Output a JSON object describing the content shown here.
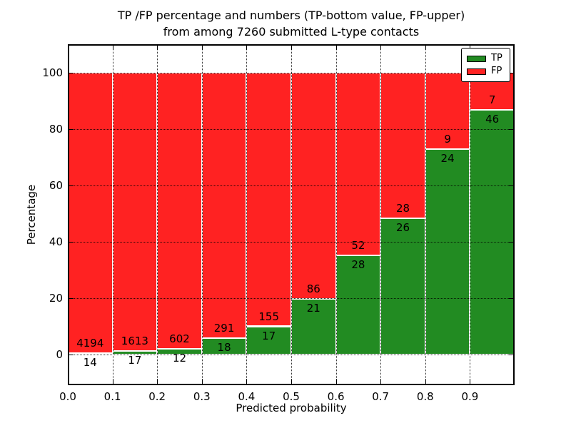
{
  "chart_data": {
    "type": "bar",
    "stacked": true,
    "title_line1": "TP /FP percentage and numbers (TP-bottom value, FP-upper)",
    "title_line2": "from among 7260 submitted L-type contacts",
    "xlabel": "Predicted probability",
    "ylabel": "Percentage",
    "total_contacts": 7260,
    "xlim": [
      0.0,
      1.0
    ],
    "ylim": [
      -11,
      110
    ],
    "x_tick_labels": [
      "0.0",
      "0.1",
      "0.2",
      "0.3",
      "0.4",
      "0.5",
      "0.6",
      "0.7",
      "0.8",
      "0.9"
    ],
    "y_tick_values": [
      0,
      20,
      40,
      60,
      80,
      100
    ],
    "grid": "dotted",
    "bins": [
      {
        "x_start": 0.0,
        "x_end": 0.1,
        "tp": 14,
        "fp": 4194,
        "tp_percent": 0.33
      },
      {
        "x_start": 0.1,
        "x_end": 0.2,
        "tp": 17,
        "fp": 1613,
        "tp_percent": 1.04
      },
      {
        "x_start": 0.2,
        "x_end": 0.3,
        "tp": 12,
        "fp": 602,
        "tp_percent": 1.95
      },
      {
        "x_start": 0.3,
        "x_end": 0.4,
        "tp": 18,
        "fp": 291,
        "tp_percent": 5.83
      },
      {
        "x_start": 0.4,
        "x_end": 0.5,
        "tp": 17,
        "fp": 155,
        "tp_percent": 9.88
      },
      {
        "x_start": 0.5,
        "x_end": 0.6,
        "tp": 21,
        "fp": 86,
        "tp_percent": 19.63
      },
      {
        "x_start": 0.6,
        "x_end": 0.7,
        "tp": 28,
        "fp": 52,
        "tp_percent": 35.0
      },
      {
        "x_start": 0.7,
        "x_end": 0.8,
        "tp": 26,
        "fp": 28,
        "tp_percent": 48.15
      },
      {
        "x_start": 0.8,
        "x_end": 0.9,
        "tp": 24,
        "fp": 9,
        "tp_percent": 72.73
      },
      {
        "x_start": 0.9,
        "x_end": 1.0,
        "tp": 46,
        "fp": 7,
        "tp_percent": 86.79
      }
    ],
    "legend": {
      "position": "upper right",
      "entries": [
        {
          "label": "TP",
          "color": "#228b22"
        },
        {
          "label": "FP",
          "color": "#ff2222"
        }
      ]
    },
    "colors": {
      "tp": "#228b22",
      "fp": "#ff2222",
      "bar_edge": "#ffffff",
      "grid": "#000000",
      "background": "#ffffff",
      "text": "#000000"
    }
  }
}
